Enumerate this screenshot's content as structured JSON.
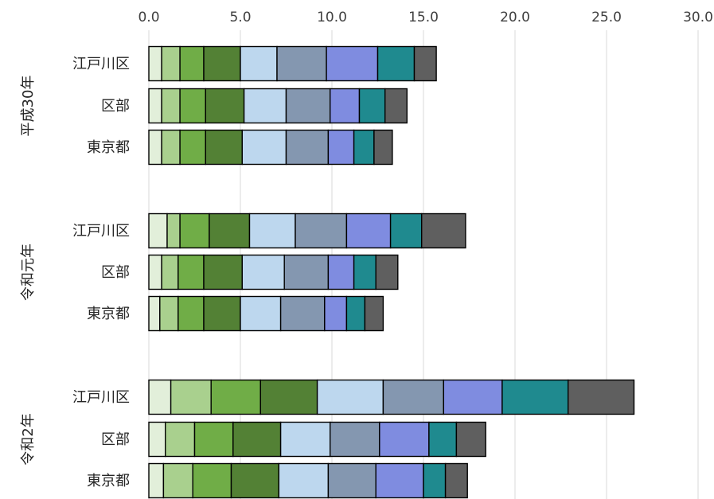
{
  "chart_data": {
    "type": "bar",
    "orientation": "horizontal",
    "stacked": true,
    "xlim": [
      0,
      30
    ],
    "xticks": [
      "0.0",
      "5.0",
      "10.0",
      "15.0",
      "20.0",
      "25.0",
      "30.0"
    ],
    "xtick_values": [
      0,
      5,
      10,
      15,
      20,
      25,
      30
    ],
    "axis_position": "top",
    "grid": true,
    "legend": "none",
    "segment_colors": [
      "#e2efda",
      "#a9d08e",
      "#70ad47",
      "#538135",
      "#bdd7ee",
      "#8497b0",
      "#7f8ce0",
      "#1f8a8f",
      "#5f5f5f"
    ],
    "groups": [
      {
        "name": "平成30年",
        "rows": [
          {
            "label": "江戸川区",
            "values": [
              0.7,
              1.0,
              1.3,
              2.0,
              2.0,
              2.7,
              2.8,
              2.0,
              1.2
            ]
          },
          {
            "label": "区部",
            "values": [
              0.7,
              1.0,
              1.4,
              2.1,
              2.3,
              2.4,
              1.6,
              1.4,
              1.2
            ]
          },
          {
            "label": "東京都",
            "values": [
              0.7,
              1.0,
              1.4,
              2.0,
              2.4,
              2.3,
              1.4,
              1.1,
              1.0
            ]
          }
        ]
      },
      {
        "name": "令和元年",
        "rows": [
          {
            "label": "江戸川区",
            "values": [
              1.0,
              0.7,
              1.6,
              2.2,
              2.5,
              2.8,
              2.4,
              1.7,
              2.4
            ]
          },
          {
            "label": "区部",
            "values": [
              0.7,
              0.9,
              1.4,
              2.1,
              2.3,
              2.4,
              1.4,
              1.2,
              1.2
            ]
          },
          {
            "label": "東京都",
            "values": [
              0.6,
              1.0,
              1.4,
              2.0,
              2.2,
              2.4,
              1.2,
              1.0,
              1.0
            ]
          }
        ]
      },
      {
        "name": "令和2年",
        "rows": [
          {
            "label": "江戸川区",
            "values": [
              1.2,
              2.2,
              2.7,
              3.1,
              3.6,
              3.3,
              3.2,
              3.6,
              3.6
            ]
          },
          {
            "label": "区部",
            "values": [
              0.9,
              1.6,
              2.1,
              2.6,
              2.7,
              2.7,
              2.7,
              1.5,
              1.6
            ]
          },
          {
            "label": "東京都",
            "values": [
              0.8,
              1.6,
              2.1,
              2.6,
              2.7,
              2.6,
              2.6,
              1.2,
              1.2
            ]
          }
        ]
      }
    ]
  }
}
